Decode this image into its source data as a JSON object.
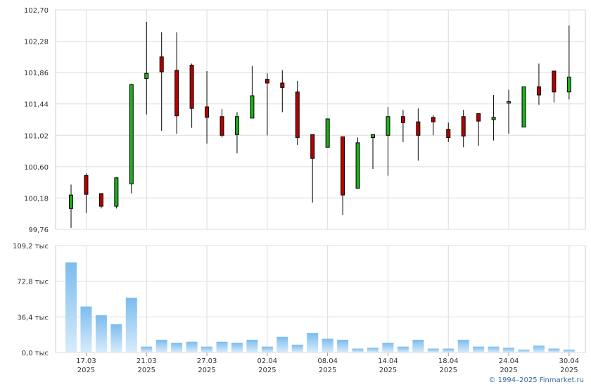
{
  "copyright": "© 1994–2025 Finmarket.ru",
  "colors": {
    "up": "#1fae1f",
    "down": "#b50000",
    "volume_top": "#7bbcef",
    "volume_bottom": "#d8ecfb",
    "grid": "#dcdcdc"
  },
  "chart_data": [
    {
      "type": "candlestick",
      "ylim": [
        99.76,
        102.7
      ],
      "y_ticks": [
        "102,70",
        "102,28",
        "101,86",
        "101,44",
        "101,02",
        "100,60",
        "100,18",
        "99,76"
      ],
      "grid": true,
      "candles": [
        {
          "open": 100.04,
          "high": 100.36,
          "low": 99.78,
          "close": 100.22
        },
        {
          "open": 100.48,
          "high": 100.51,
          "low": 99.98,
          "close": 100.23
        },
        {
          "open": 100.24,
          "high": 100.24,
          "low": 100.04,
          "close": 100.07
        },
        {
          "open": 100.07,
          "high": 100.46,
          "low": 100.04,
          "close": 100.45
        },
        {
          "open": 100.37,
          "high": 101.71,
          "low": 100.24,
          "close": 101.7
        },
        {
          "open": 101.78,
          "high": 102.54,
          "low": 101.3,
          "close": 101.85
        },
        {
          "open": 102.07,
          "high": 102.4,
          "low": 101.08,
          "close": 101.87
        },
        {
          "open": 101.89,
          "high": 102.4,
          "low": 101.04,
          "close": 101.28
        },
        {
          "open": 101.96,
          "high": 101.98,
          "low": 101.12,
          "close": 101.38
        },
        {
          "open": 101.4,
          "high": 101.88,
          "low": 100.91,
          "close": 101.26
        },
        {
          "open": 101.27,
          "high": 101.37,
          "low": 100.99,
          "close": 101.02
        },
        {
          "open": 101.03,
          "high": 101.33,
          "low": 100.78,
          "close": 101.27
        },
        {
          "open": 101.25,
          "high": 101.95,
          "low": 101.25,
          "close": 101.55
        },
        {
          "open": 101.77,
          "high": 101.85,
          "low": 101.02,
          "close": 101.72
        },
        {
          "open": 101.72,
          "high": 101.89,
          "low": 101.33,
          "close": 101.66
        },
        {
          "open": 101.6,
          "high": 101.75,
          "low": 100.89,
          "close": 100.99
        },
        {
          "open": 101.03,
          "high": 101.03,
          "low": 100.12,
          "close": 100.71
        },
        {
          "open": 100.86,
          "high": 101.22,
          "low": 100.86,
          "close": 101.24
        },
        {
          "open": 101.0,
          "high": 101.0,
          "low": 99.95,
          "close": 100.22
        },
        {
          "open": 100.31,
          "high": 100.99,
          "low": 100.31,
          "close": 100.92
        },
        {
          "open": 100.99,
          "high": 101.03,
          "low": 100.57,
          "close": 101.03
        },
        {
          "open": 101.02,
          "high": 101.4,
          "low": 100.48,
          "close": 101.27
        },
        {
          "open": 101.27,
          "high": 101.36,
          "low": 100.93,
          "close": 101.19
        },
        {
          "open": 101.2,
          "high": 101.38,
          "low": 100.68,
          "close": 101.02
        },
        {
          "open": 101.26,
          "high": 101.29,
          "low": 101.02,
          "close": 101.2
        },
        {
          "open": 101.1,
          "high": 101.19,
          "low": 100.93,
          "close": 100.99
        },
        {
          "open": 101.27,
          "high": 101.36,
          "low": 100.86,
          "close": 101.01
        },
        {
          "open": 101.31,
          "high": 101.3,
          "low": 100.88,
          "close": 101.21
        },
        {
          "open": 101.23,
          "high": 101.56,
          "low": 100.95,
          "close": 101.26
        },
        {
          "open": 101.47,
          "high": 101.63,
          "low": 101.04,
          "close": 101.47
        },
        {
          "open": 101.13,
          "high": 101.67,
          "low": 101.13,
          "close": 101.67
        },
        {
          "open": 101.67,
          "high": 101.98,
          "low": 101.43,
          "close": 101.56
        },
        {
          "open": 101.88,
          "high": 101.88,
          "low": 101.46,
          "close": 101.6
        },
        {
          "open": 101.6,
          "high": 102.49,
          "low": 101.5,
          "close": 101.8
        }
      ]
    },
    {
      "type": "bar",
      "ylim": [
        0,
        109.2
      ],
      "y_ticks": [
        "109,2 тыс",
        "72,8 тыс",
        "36,4 тыс",
        "0,0 тыс"
      ],
      "grid": true,
      "values": [
        92,
        47,
        38,
        29,
        56,
        6,
        13,
        10,
        11,
        6,
        11,
        10,
        13,
        6,
        16,
        8,
        20,
        14,
        13,
        4,
        5,
        10,
        6,
        13,
        4,
        4,
        13,
        6,
        6,
        5,
        3,
        7,
        4,
        3
      ],
      "x_ticks": [
        {
          "date": "17.03",
          "year": "2025"
        },
        {
          "date": "21.03",
          "year": "2025"
        },
        {
          "date": "27.03",
          "year": "2025"
        },
        {
          "date": "02.04",
          "year": "2025"
        },
        {
          "date": "08.04",
          "year": "2025"
        },
        {
          "date": "14.04",
          "year": "2025"
        },
        {
          "date": "18.04",
          "year": "2025"
        },
        {
          "date": "24.04",
          "year": "2025"
        },
        {
          "date": "30.04",
          "year": "2025"
        }
      ]
    }
  ]
}
